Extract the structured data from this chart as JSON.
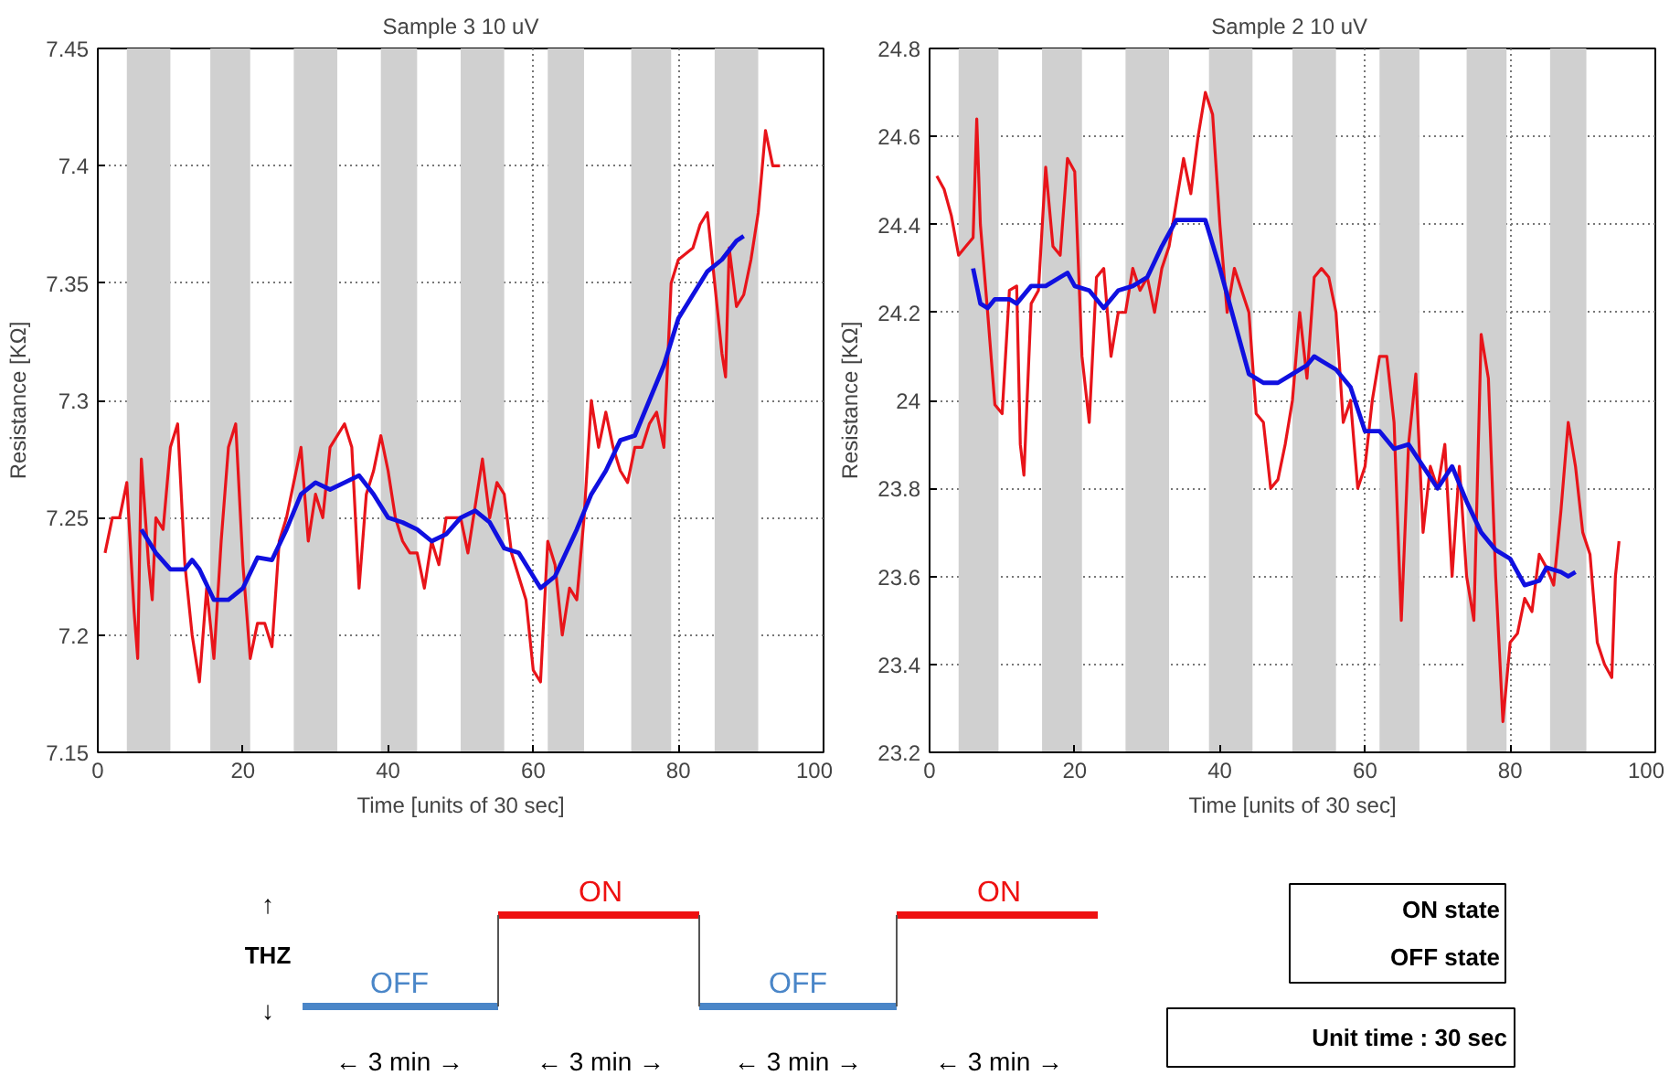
{
  "chart_data": [
    {
      "type": "line",
      "title": "Sample 3 10 uV",
      "xlabel": "Time [units of 30 sec]",
      "ylabel": "Resistance [KΩ]",
      "xlim": [
        0,
        100
      ],
      "xticks": [
        0,
        20,
        40,
        60,
        80,
        100
      ],
      "ylim": [
        7.15,
        7.45
      ],
      "yticks": [
        7.15,
        7.2,
        7.25,
        7.3,
        7.35,
        7.4,
        7.45
      ],
      "grid": true,
      "bands": [
        {
          "axis": "x",
          "from": 4,
          "to": 10,
          "color": "#d0d0d0"
        },
        {
          "axis": "x",
          "from": 15.5,
          "to": 21,
          "color": "#d0d0d0"
        },
        {
          "axis": "x",
          "from": 27,
          "to": 33,
          "color": "#d0d0d0"
        },
        {
          "axis": "x",
          "from": 39,
          "to": 44,
          "color": "#d0d0d0"
        },
        {
          "axis": "x",
          "from": 50,
          "to": 56,
          "color": "#d0d0d0"
        },
        {
          "axis": "x",
          "from": 62,
          "to": 67,
          "color": "#d0d0d0"
        },
        {
          "axis": "x",
          "from": 73.5,
          "to": 79,
          "color": "#d0d0d0"
        },
        {
          "axis": "x",
          "from": 85,
          "to": 91,
          "color": "#d0d0d0"
        }
      ],
      "series": [
        {
          "color": "#e8141a",
          "x": [
            1,
            2,
            3,
            4,
            5,
            5.5,
            6,
            7,
            7.5,
            8,
            9,
            10,
            11,
            12,
            13,
            14,
            15,
            16,
            17,
            18,
            19,
            20,
            21,
            22,
            23,
            24,
            25,
            26,
            27,
            28,
            29,
            30,
            31,
            32,
            34,
            35,
            36,
            37,
            38,
            39,
            40,
            41,
            42,
            43,
            44,
            45,
            46,
            47,
            48,
            50,
            51,
            52,
            53,
            54,
            55,
            56,
            57,
            59,
            60,
            61,
            62,
            63,
            64,
            65,
            66,
            67,
            68,
            69,
            70,
            71,
            72,
            73,
            74,
            75,
            76,
            77,
            78,
            79,
            80,
            82,
            83,
            84,
            85,
            86,
            86.5,
            87,
            88,
            89,
            90,
            91,
            92,
            93,
            94
          ],
          "values": [
            7.235,
            7.25,
            7.25,
            7.265,
            7.21,
            7.19,
            7.275,
            7.23,
            7.215,
            7.25,
            7.245,
            7.28,
            7.29,
            7.23,
            7.2,
            7.18,
            7.22,
            7.19,
            7.24,
            7.28,
            7.29,
            7.23,
            7.19,
            7.205,
            7.205,
            7.195,
            7.24,
            7.25,
            7.265,
            7.28,
            7.24,
            7.26,
            7.25,
            7.28,
            7.29,
            7.28,
            7.22,
            7.26,
            7.27,
            7.285,
            7.27,
            7.25,
            7.24,
            7.235,
            7.235,
            7.22,
            7.24,
            7.23,
            7.25,
            7.25,
            7.235,
            7.255,
            7.275,
            7.25,
            7.265,
            7.26,
            7.235,
            7.215,
            7.185,
            7.18,
            7.24,
            7.23,
            7.2,
            7.22,
            7.215,
            7.25,
            7.3,
            7.28,
            7.295,
            7.28,
            7.27,
            7.265,
            7.28,
            7.28,
            7.29,
            7.295,
            7.28,
            7.35,
            7.36,
            7.365,
            7.375,
            7.38,
            7.35,
            7.32,
            7.31,
            7.365,
            7.34,
            7.345,
            7.36,
            7.38,
            7.415,
            7.4,
            7.4
          ]
        },
        {
          "color": "#1010e0",
          "x": [
            6,
            8,
            10,
            12,
            13,
            14,
            16,
            18,
            20,
            22,
            24,
            26,
            28,
            30,
            32,
            34,
            36,
            38,
            40,
            42,
            44,
            46,
            48,
            50,
            52,
            54,
            56,
            58,
            60,
            61,
            63,
            66,
            68,
            70,
            72,
            74,
            76,
            78,
            80,
            82,
            84,
            86,
            88,
            89
          ],
          "values": [
            7.245,
            7.235,
            7.228,
            7.228,
            7.232,
            7.228,
            7.215,
            7.215,
            7.22,
            7.233,
            7.232,
            7.245,
            7.26,
            7.265,
            7.262,
            7.265,
            7.268,
            7.26,
            7.25,
            7.248,
            7.245,
            7.24,
            7.243,
            7.25,
            7.253,
            7.248,
            7.237,
            7.235,
            7.225,
            7.22,
            7.225,
            7.245,
            7.26,
            7.27,
            7.283,
            7.285,
            7.3,
            7.315,
            7.335,
            7.345,
            7.355,
            7.36,
            7.368,
            7.37
          ]
        }
      ]
    },
    {
      "type": "line",
      "title": "Sample 2  10 uV",
      "xlabel": "Time [units of 30 sec]",
      "ylabel": "Resistance [KΩ]",
      "xlim": [
        0,
        100
      ],
      "xticks": [
        0,
        20,
        40,
        60,
        80,
        100
      ],
      "ylim": [
        23.2,
        24.8
      ],
      "yticks": [
        23.2,
        23.4,
        23.6,
        23.8,
        24,
        24.2,
        24.4,
        24.6,
        24.8
      ],
      "grid": true,
      "bands": [
        {
          "axis": "x",
          "from": 4,
          "to": 9.5,
          "color": "#d0d0d0"
        },
        {
          "axis": "x",
          "from": 15.5,
          "to": 21,
          "color": "#d0d0d0"
        },
        {
          "axis": "x",
          "from": 27,
          "to": 33,
          "color": "#d0d0d0"
        },
        {
          "axis": "x",
          "from": 38.5,
          "to": 44.5,
          "color": "#d0d0d0"
        },
        {
          "axis": "x",
          "from": 50,
          "to": 56,
          "color": "#d0d0d0"
        },
        {
          "axis": "x",
          "from": 62,
          "to": 67.5,
          "color": "#d0d0d0"
        },
        {
          "axis": "x",
          "from": 74,
          "to": 79.5,
          "color": "#d0d0d0"
        },
        {
          "axis": "x",
          "from": 85.5,
          "to": 90.5,
          "color": "#d0d0d0"
        }
      ],
      "series": [
        {
          "color": "#e8141a",
          "x": [
            1,
            2,
            3,
            4,
            5,
            6,
            6.5,
            7,
            8,
            9,
            10,
            11,
            12,
            12.5,
            13,
            14,
            15,
            16,
            17,
            18,
            19,
            20,
            21,
            22,
            23,
            24,
            25,
            26,
            27,
            28,
            29,
            30,
            31,
            32,
            33,
            34,
            35,
            36,
            37,
            38,
            39,
            40,
            41,
            42,
            43,
            44,
            45,
            46,
            47,
            48,
            49,
            50,
            51,
            52,
            53,
            54,
            55,
            56,
            57,
            58,
            59,
            60,
            61,
            62,
            63,
            64,
            65,
            66,
            67,
            68,
            69,
            70,
            71,
            72,
            73,
            74,
            75,
            76,
            77,
            78,
            79,
            80,
            81,
            82,
            83,
            84,
            85,
            86,
            87,
            88,
            89,
            90,
            91,
            92,
            93,
            94,
            94.5,
            95
          ],
          "values": [
            24.51,
            24.48,
            24.42,
            24.33,
            24.35,
            24.37,
            24.64,
            24.4,
            24.2,
            23.99,
            23.97,
            24.25,
            24.26,
            23.9,
            23.83,
            24.22,
            24.25,
            24.53,
            24.35,
            24.33,
            24.55,
            24.52,
            24.1,
            23.95,
            24.28,
            24.3,
            24.1,
            24.2,
            24.2,
            24.3,
            24.25,
            24.28,
            24.2,
            24.3,
            24.35,
            24.45,
            24.55,
            24.47,
            24.6,
            24.7,
            24.65,
            24.4,
            24.2,
            24.3,
            24.25,
            24.2,
            23.97,
            23.95,
            23.8,
            23.82,
            23.9,
            24.0,
            24.2,
            24.05,
            24.28,
            24.3,
            24.28,
            24.2,
            23.95,
            24.0,
            23.8,
            23.85,
            24.0,
            24.1,
            24.1,
            23.95,
            23.5,
            23.9,
            24.06,
            23.7,
            23.85,
            23.8,
            23.9,
            23.6,
            23.85,
            23.6,
            23.5,
            24.15,
            24.05,
            23.6,
            23.27,
            23.45,
            23.47,
            23.55,
            23.52,
            23.65,
            23.62,
            23.58,
            23.75,
            23.95,
            23.85,
            23.7,
            23.65,
            23.45,
            23.4,
            23.37,
            23.6,
            23.68
          ]
        },
        {
          "color": "#1010e0",
          "x": [
            6,
            7,
            8,
            9,
            11,
            12,
            14,
            16,
            18,
            19,
            20,
            22,
            24,
            26,
            28,
            30,
            32,
            34,
            36,
            38,
            40,
            42,
            44,
            46,
            48,
            50,
            52,
            53,
            54,
            56,
            58,
            60,
            62,
            64,
            66,
            68,
            70,
            72,
            74,
            76,
            78,
            80,
            82,
            84,
            85,
            87,
            88,
            89
          ],
          "values": [
            24.3,
            24.22,
            24.21,
            24.23,
            24.23,
            24.22,
            24.26,
            24.26,
            24.28,
            24.29,
            24.26,
            24.25,
            24.21,
            24.25,
            24.26,
            24.28,
            24.35,
            24.41,
            24.41,
            24.41,
            24.3,
            24.18,
            24.06,
            24.04,
            24.04,
            24.06,
            24.08,
            24.1,
            24.09,
            24.07,
            24.03,
            23.93,
            23.93,
            23.89,
            23.9,
            23.85,
            23.8,
            23.85,
            23.77,
            23.7,
            23.66,
            23.64,
            23.58,
            23.59,
            23.62,
            23.61,
            23.6,
            23.61
          ]
        }
      ]
    },
    {
      "type": "other",
      "annotations": [
        "↑",
        "THZ",
        "↓",
        "OFF",
        "ON",
        "OFF",
        "ON",
        "← 3 min →",
        "← 3 min →",
        "← 3 min →",
        "← 3 min →",
        "ON state",
        "OFF state",
        "Unit time : 30 sec"
      ]
    }
  ]
}
